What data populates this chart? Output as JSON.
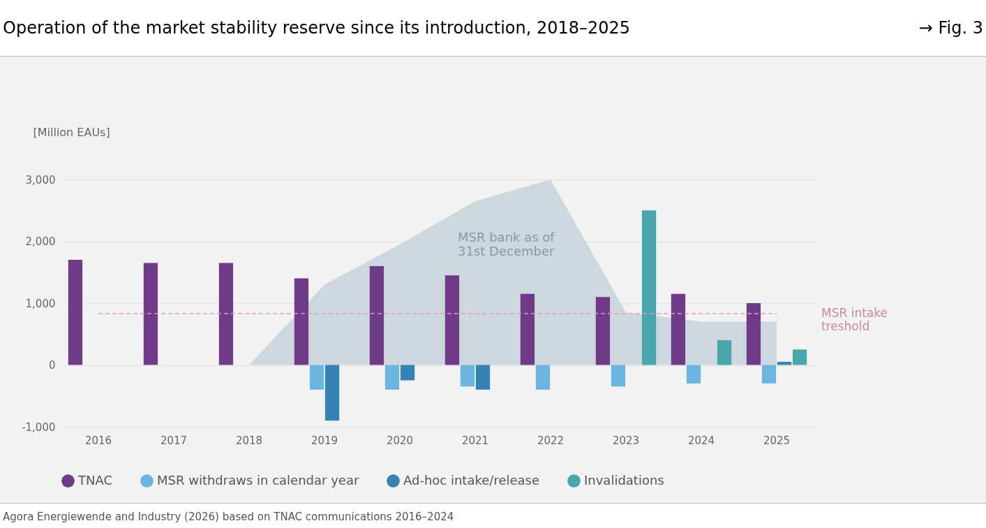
{
  "chart_data": {
    "type": "bar",
    "title": "Operation of the market stability reserve since its introduction, 2018–2025",
    "ylabel": "[Million EAUs]",
    "annotations": [
      "→ Fig. 3",
      "Agora Energiewende and Industry (2026) based on TNAC communications 2016–2024"
    ],
    "categories": [
      "2016",
      "2017",
      "2018",
      "2019",
      "2020",
      "2021",
      "2022",
      "2023",
      "2024",
      "2025"
    ],
    "series": [
      {
        "name": "MSR bank as of 31st December",
        "type": "area",
        "color": "#cdd8de",
        "values": [
          null,
          null,
          0,
          1300,
          1950,
          2650,
          3000,
          850,
          700,
          700
        ]
      },
      {
        "name": "TNAC",
        "color": "#6f3a87",
        "values": [
          1700,
          1650,
          1650,
          1400,
          1600,
          1450,
          1150,
          1100,
          1150,
          1000
        ]
      },
      {
        "name": "MSR withdraws in calendar year",
        "color": "#6bb5e0",
        "values": [
          0,
          0,
          0,
          -400,
          -400,
          -350,
          -400,
          -350,
          -300,
          -300
        ]
      },
      {
        "name": "Ad-hoc intake/release",
        "color": "#3483b4",
        "values": [
          0,
          0,
          0,
          -900,
          -250,
          -400,
          null,
          null,
          0,
          50
        ]
      },
      {
        "name": "Invalidations",
        "color": "#4aa6ad",
        "values": [
          null,
          null,
          null,
          null,
          null,
          null,
          null,
          2500,
          400,
          250
        ]
      }
    ],
    "ylim": [
      -1000,
      3000
    ],
    "yticks": [
      {
        "value": -1000,
        "label": "-1,000"
      },
      0,
      {
        "value": 1000,
        "label": "1,000"
      },
      {
        "value": 2000,
        "label": "2,000"
      },
      {
        "value": 3000,
        "label": "3,000"
      }
    ],
    "grid": "y",
    "legend": "bottom",
    "ref_lines": [
      {
        "axis": "y",
        "value": 830,
        "label": "MSR intake treshold",
        "color": "#e59ab5",
        "line_style": "dashed"
      }
    ]
  }
}
